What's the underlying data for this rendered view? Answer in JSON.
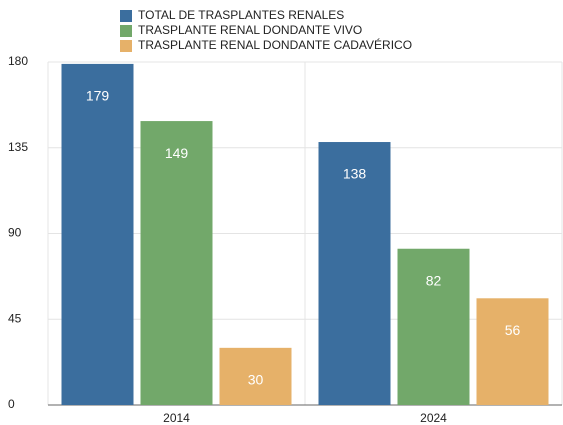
{
  "chart_data": {
    "type": "bar",
    "categories": [
      "2014",
      "2024"
    ],
    "series": [
      {
        "name": "TOTAL DE TRASPLANTES RENALES",
        "color": "#3b6e9e",
        "values": [
          179,
          138
        ]
      },
      {
        "name": "TRASPLANTE RENAL DONDANTE VIVO",
        "color": "#72a86a",
        "values": [
          149,
          82
        ]
      },
      {
        "name": "TRASPLANTE RENAL DONDANTE CADAVÉRICO",
        "color": "#e6b169",
        "values": [
          30,
          56
        ]
      }
    ],
    "ylim": [
      0,
      180
    ],
    "yticks": [
      0,
      45,
      90,
      135,
      180
    ],
    "grid": true,
    "legend": "top"
  }
}
